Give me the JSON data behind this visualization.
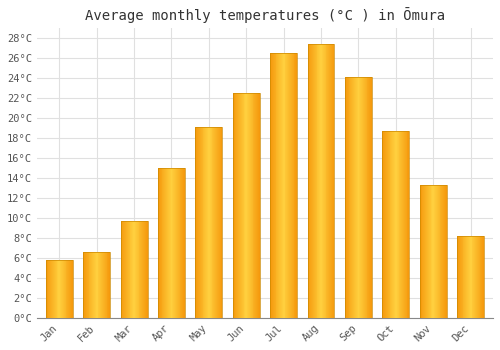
{
  "title": "Average monthly temperatures (°C ) in Ōmura",
  "months": [
    "Jan",
    "Feb",
    "Mar",
    "Apr",
    "May",
    "Jun",
    "Jul",
    "Aug",
    "Sep",
    "Oct",
    "Nov",
    "Dec"
  ],
  "temperatures": [
    5.8,
    6.6,
    9.7,
    15.0,
    19.1,
    22.5,
    26.5,
    27.4,
    24.1,
    18.7,
    13.3,
    8.2
  ],
  "bar_color_main": "#FFB300",
  "bar_color_light": "#FFCC44",
  "bar_color_dark": "#E89000",
  "bar_edge_color": "#CC8800",
  "ylim": [
    0,
    29
  ],
  "ytick_step": 2,
  "background_color": "#ffffff",
  "plot_background": "#ffffff",
  "grid_color": "#e0e0e0",
  "title_fontsize": 10,
  "tick_fontsize": 7.5,
  "font_family": "monospace"
}
